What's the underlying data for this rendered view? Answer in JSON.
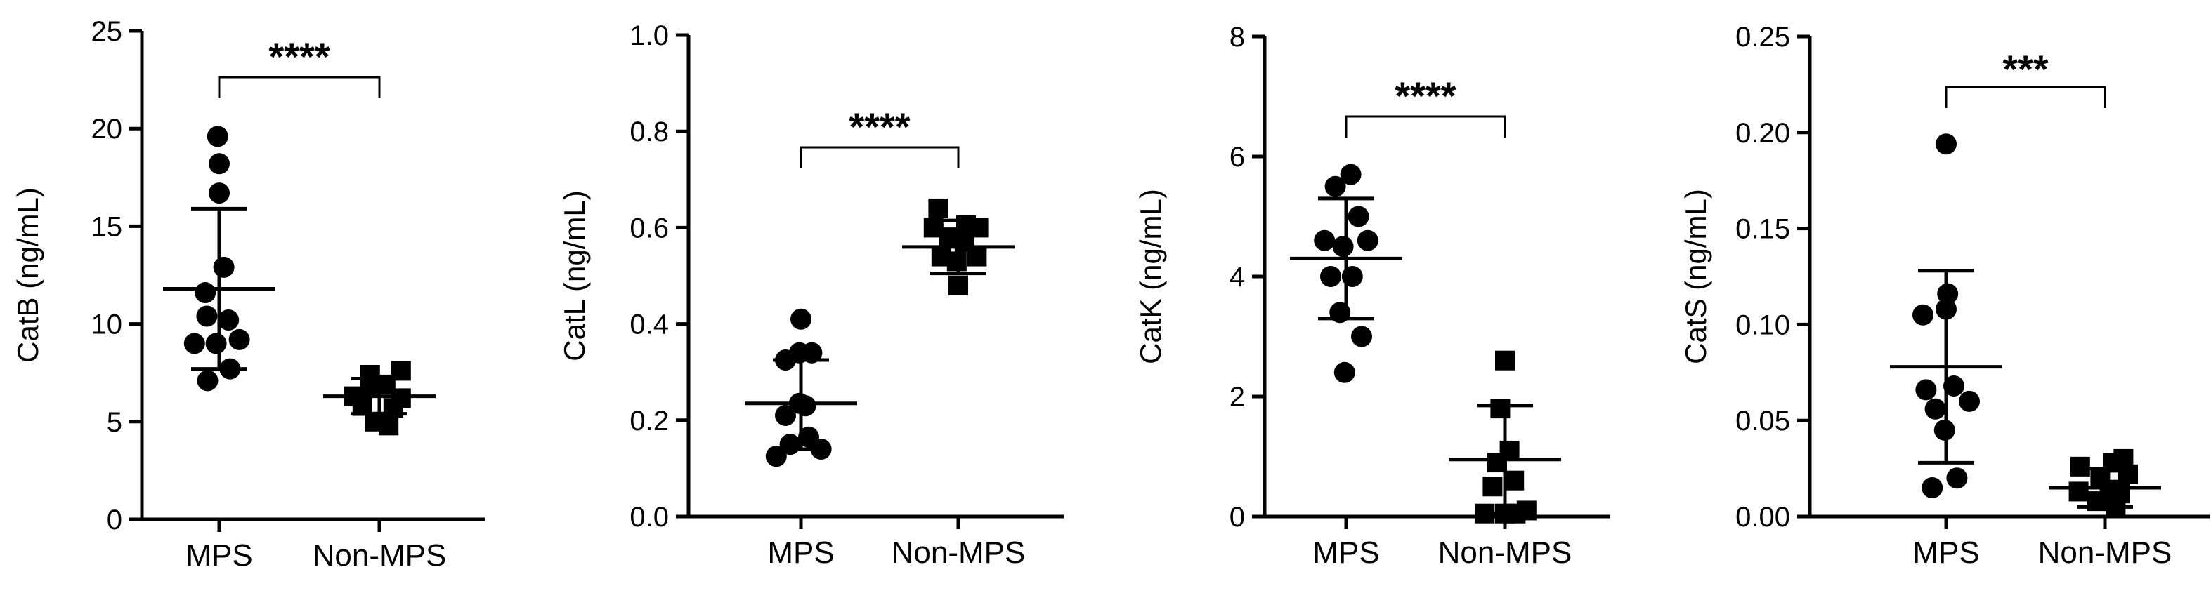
{
  "chart_data": [
    {
      "type": "scatter",
      "ylabel": "CatB (ng/mL)",
      "categories": [
        "MPS",
        "Non-MPS"
      ],
      "ylim": [
        0,
        25
      ],
      "yticks": [
        0,
        5,
        10,
        15,
        20,
        25
      ],
      "ytick_labels": [
        "0",
        "5",
        "10",
        "15",
        "20",
        "25"
      ],
      "significance": "****",
      "series": [
        {
          "category": "MPS",
          "marker": "circle",
          "mean": 11.8,
          "sd_low": 7.7,
          "sd_high": 15.9,
          "points": [
            [
              -0.32,
              9.0
            ],
            [
              -0.04,
              9.0
            ],
            [
              0.26,
              9.2
            ],
            [
              -0.16,
              10.4
            ],
            [
              0.12,
              10.2
            ],
            [
              -0.18,
              11.6
            ],
            [
              0.06,
              12.9
            ],
            [
              0.14,
              7.7
            ],
            [
              -0.15,
              7.1
            ],
            [
              0.0,
              16.7
            ],
            [
              0.0,
              18.2
            ],
            [
              -0.02,
              19.6
            ]
          ]
        },
        {
          "category": "Non-MPS",
          "marker": "square",
          "mean": 6.3,
          "sd_low": 5.4,
          "sd_high": 7.2,
          "points": [
            [
              -0.33,
              6.3
            ],
            [
              -0.12,
              6.8
            ],
            [
              0.08,
              6.9
            ],
            [
              0.28,
              6.2
            ],
            [
              -0.22,
              5.8
            ],
            [
              0.18,
              5.7
            ],
            [
              -0.06,
              5.0
            ],
            [
              0.12,
              4.8
            ],
            [
              0.28,
              7.6
            ],
            [
              -0.12,
              7.4
            ]
          ]
        }
      ]
    },
    {
      "type": "scatter",
      "ylabel": "CatL (ng/mL)",
      "categories": [
        "MPS",
        "Non-MPS"
      ],
      "ylim": [
        0,
        1.0
      ],
      "yticks": [
        0,
        0.2,
        0.4,
        0.6,
        0.8,
        1.0
      ],
      "ytick_labels": [
        "0.0",
        "0.2",
        "0.4",
        "0.6",
        "0.8",
        "1.0"
      ],
      "significance": "****",
      "series": [
        {
          "category": "MPS",
          "marker": "circle",
          "mean": 0.235,
          "sd_low": 0.14,
          "sd_high": 0.325,
          "points": [
            [
              -0.32,
              0.125
            ],
            [
              0.26,
              0.14
            ],
            [
              -0.14,
              0.15
            ],
            [
              0.1,
              0.165
            ],
            [
              -0.2,
              0.21
            ],
            [
              0.06,
              0.23
            ],
            [
              -0.02,
              0.235
            ],
            [
              -0.2,
              0.325
            ],
            [
              0.14,
              0.34
            ],
            [
              -0.02,
              0.34
            ],
            [
              0.0,
              0.41
            ]
          ]
        },
        {
          "category": "Non-MPS",
          "marker": "square",
          "mean": 0.56,
          "sd_low": 0.505,
          "sd_high": 0.615,
          "points": [
            [
              -0.32,
              0.6
            ],
            [
              0.26,
              0.6
            ],
            [
              -0.12,
              0.58
            ],
            [
              0.08,
              0.57
            ],
            [
              -0.22,
              0.54
            ],
            [
              0.24,
              0.54
            ],
            [
              -0.02,
              0.53
            ],
            [
              0.0,
              0.48
            ],
            [
              -0.26,
              0.64
            ],
            [
              0.1,
              0.605
            ]
          ]
        }
      ]
    },
    {
      "type": "scatter",
      "ylabel": "CatK (ng/mL)",
      "categories": [
        "MPS",
        "Non-MPS"
      ],
      "ylim": [
        0,
        8
      ],
      "yticks": [
        0,
        2,
        4,
        6,
        8
      ],
      "ytick_labels": [
        "0",
        "2",
        "4",
        "6",
        "8"
      ],
      "significance": "****",
      "series": [
        {
          "category": "MPS",
          "marker": "circle",
          "mean": 4.3,
          "sd_low": 3.3,
          "sd_high": 5.3,
          "points": [
            [
              -0.28,
              4.6
            ],
            [
              -0.04,
              4.5
            ],
            [
              0.28,
              4.6
            ],
            [
              -0.2,
              4.0
            ],
            [
              0.08,
              4.0
            ],
            [
              -0.14,
              5.5
            ],
            [
              0.06,
              5.7
            ],
            [
              -0.08,
              3.4
            ],
            [
              0.2,
              3.0
            ],
            [
              -0.02,
              2.4
            ],
            [
              0.16,
              5.0
            ]
          ]
        },
        {
          "category": "Non-MPS",
          "marker": "square",
          "mean": 0.95,
          "sd_low": 0.05,
          "sd_high": 1.85,
          "points": [
            [
              -0.26,
              0.05
            ],
            [
              0.0,
              0.05
            ],
            [
              0.28,
              0.1
            ],
            [
              -0.16,
              0.5
            ],
            [
              0.12,
              0.6
            ],
            [
              -0.1,
              0.9
            ],
            [
              -0.06,
              1.8
            ],
            [
              0.0,
              2.6
            ],
            [
              0.06,
              1.1
            ],
            [
              0.14,
              0.05
            ]
          ]
        }
      ]
    },
    {
      "type": "scatter",
      "ylabel": "CatS (ng/mL)",
      "categories": [
        "MPS",
        "Non-MPS"
      ],
      "ylim": [
        0,
        0.25
      ],
      "yticks": [
        0,
        0.05,
        0.1,
        0.15,
        0.2,
        0.25
      ],
      "ytick_labels": [
        "0.00",
        "0.05",
        "0.10",
        "0.15",
        "0.20",
        "0.25"
      ],
      "significance": "***",
      "series": [
        {
          "category": "MPS",
          "marker": "circle",
          "mean": 0.078,
          "sd_low": 0.028,
          "sd_high": 0.128,
          "points": [
            [
              -0.3,
              0.105
            ],
            [
              0.0,
              0.108
            ],
            [
              0.02,
              0.116
            ],
            [
              -0.26,
              0.066
            ],
            [
              0.1,
              0.068
            ],
            [
              -0.14,
              0.056
            ],
            [
              -0.02,
              0.045
            ],
            [
              0.14,
              0.02
            ],
            [
              -0.18,
              0.015
            ],
            [
              0.3,
              0.06
            ],
            [
              0.0,
              0.194
            ]
          ]
        },
        {
          "category": "Non-MPS",
          "marker": "square",
          "mean": 0.015,
          "sd_low": 0.005,
          "sd_high": 0.025,
          "points": [
            [
              -0.32,
              0.026
            ],
            [
              -0.34,
              0.013
            ],
            [
              -0.1,
              0.008
            ],
            [
              -0.06,
              0.02
            ],
            [
              0.06,
              0.014
            ],
            [
              0.1,
              0.028
            ],
            [
              0.24,
              0.03
            ],
            [
              0.3,
              0.022
            ],
            [
              0.2,
              0.012
            ],
            [
              0.14,
              0.006
            ]
          ]
        }
      ]
    }
  ]
}
